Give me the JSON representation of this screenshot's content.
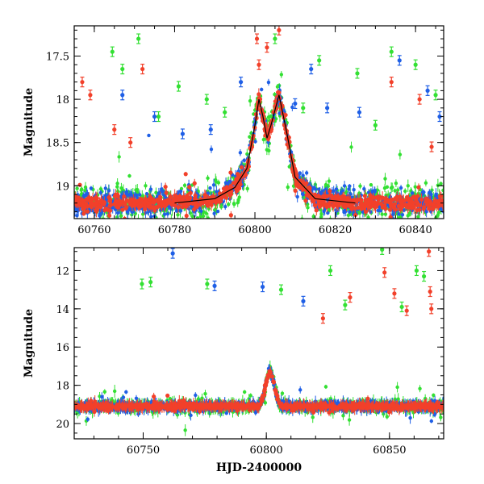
{
  "chart_data": [
    {
      "type": "scatter",
      "panel": "top",
      "xlabel": "",
      "ylabel": "Magnitude",
      "xlim": [
        60755,
        60847
      ],
      "ylim": [
        19.38,
        17.15
      ],
      "y_inverted": true,
      "x_ticks": [
        60760,
        60780,
        60800,
        60820,
        60840
      ],
      "y_ticks": [
        17.5,
        18,
        18.5,
        19
      ],
      "x_tick_labels": [
        "60760",
        "60780",
        "60800",
        "60820",
        "60840"
      ],
      "y_tick_labels": [
        "17.5",
        "18",
        "18.5",
        "19"
      ],
      "grid": false,
      "colors": {
        "green": "#33e033",
        "blue": "#1f5fe6",
        "red": "#f2402a",
        "model": "#000000"
      },
      "model_curve": {
        "x": [
          60780,
          60790,
          60795,
          60798,
          60800,
          60801,
          60802,
          60803,
          60804,
          60806,
          60808,
          60810,
          60815,
          60825
        ],
        "y": [
          19.2,
          19.15,
          19.02,
          18.8,
          18.3,
          18.0,
          18.2,
          18.45,
          18.3,
          17.95,
          18.4,
          18.9,
          19.15,
          19.2
        ]
      },
      "series": [
        {
          "color_key": "green",
          "x": [
            60764.5,
            60767,
            60771,
            60781,
            60792.5,
            60805,
            60816,
            60825.5,
            60834,
            60840,
            60776,
            60788,
            60812,
            60830,
            60845
          ],
          "y": [
            17.45,
            17.65,
            17.3,
            17.85,
            18.15,
            17.3,
            17.55,
            17.7,
            17.45,
            17.6,
            18.2,
            18.0,
            18.1,
            18.3,
            17.95
          ]
        },
        {
          "color_key": "blue",
          "x": [
            60767,
            60775,
            60782,
            60789,
            60796.5,
            60810,
            60814,
            60818,
            60826,
            60836,
            60843,
            60846
          ],
          "y": [
            17.95,
            18.2,
            18.4,
            18.35,
            17.8,
            18.05,
            17.65,
            18.1,
            18.15,
            17.55,
            17.9,
            18.2
          ]
        },
        {
          "color_key": "red",
          "x": [
            60757,
            60759,
            60765,
            60769,
            60772,
            60800.5,
            60801,
            60803,
            60806,
            60834,
            60841,
            60844
          ],
          "y": [
            17.8,
            17.95,
            18.35,
            18.5,
            17.65,
            17.3,
            17.6,
            17.4,
            17.2,
            17.8,
            18.0,
            18.55
          ]
        }
      ]
    },
    {
      "type": "scatter",
      "panel": "bottom",
      "xlabel": "HJD-2400000",
      "ylabel": "Magnitude",
      "xlim": [
        60722,
        60872
      ],
      "ylim": [
        20.8,
        10.8
      ],
      "y_inverted": true,
      "x_ticks": [
        60750,
        60800,
        60850
      ],
      "y_ticks": [
        12,
        14,
        16,
        18,
        20
      ],
      "x_tick_labels": [
        "60750",
        "60800",
        "60850"
      ],
      "y_tick_labels": [
        "12",
        "14",
        "16",
        "18",
        "20"
      ],
      "grid": false,
      "colors": {
        "green": "#33e033",
        "blue": "#1f5fe6",
        "red": "#f2402a"
      },
      "series": [
        {
          "color_key": "green",
          "x": [
            60749.5,
            60753,
            60776,
            60806,
            60826,
            60832,
            60847,
            60855,
            60861,
            60864
          ],
          "y": [
            12.7,
            12.6,
            12.7,
            13.0,
            12.0,
            13.8,
            10.9,
            13.9,
            12.0,
            12.3
          ]
        },
        {
          "color_key": "blue",
          "x": [
            60762,
            60779,
            60798.5,
            60815
          ],
          "y": [
            11.1,
            12.8,
            12.85,
            13.6
          ]
        },
        {
          "color_key": "red",
          "x": [
            60823,
            60834,
            60848,
            60852,
            60857,
            60866,
            60866.5,
            60867
          ],
          "y": [
            14.5,
            13.4,
            12.1,
            13.2,
            14.1,
            11.0,
            13.1,
            14.0
          ]
        }
      ]
    }
  ]
}
